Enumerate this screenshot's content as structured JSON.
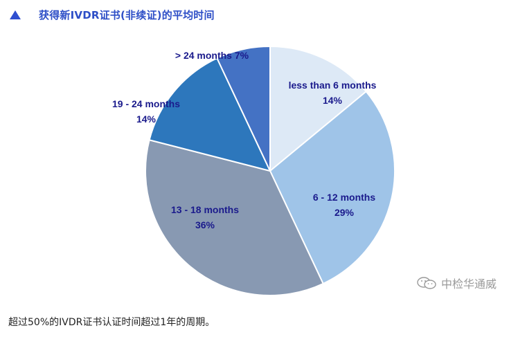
{
  "header": {
    "title": "获得新IVDR证书(非续证)的平均时间"
  },
  "chart_data": {
    "type": "pie",
    "title": "获得新IVDR证书(非续证)的平均时间",
    "slices": [
      {
        "label": "less than 6 months",
        "value": 14,
        "pct_label": "14%",
        "color": "#dde9f6"
      },
      {
        "label": "6 - 12 months",
        "value": 29,
        "pct_label": "29%",
        "color": "#9fc4e8"
      },
      {
        "label": "13 - 18 months",
        "value": 36,
        "pct_label": "36%",
        "color": "#8899b2"
      },
      {
        "label": "19 - 24 months",
        "value": 14,
        "pct_label": "14%",
        "color": "#2d77bc"
      },
      {
        "label": "> 24 months",
        "value": 7,
        "pct_label": "7%",
        "color": "#4472c4"
      }
    ]
  },
  "watermark": {
    "icon": "wechat-icon",
    "text": "中检华通威"
  },
  "footer": {
    "text": "超过50%的IVDR证书认证时间超过1年的周期。"
  }
}
